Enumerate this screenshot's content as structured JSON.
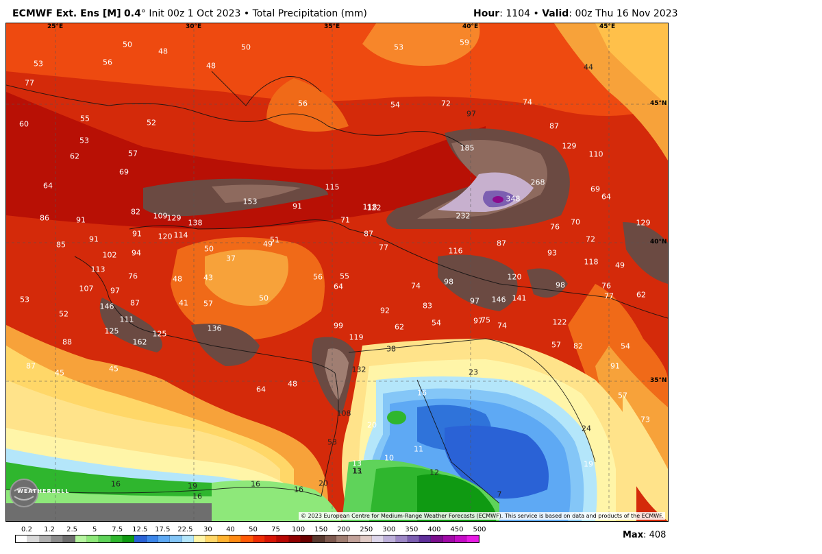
{
  "header": {
    "model": "ECMWF Ext. Ens [M]",
    "resolution": "0.4",
    "degree": "°",
    "init": "Init 00z 1 Oct 2023",
    "bullet": "•",
    "product": "Total Precipitation (mm)",
    "hour_label": "Hour",
    "hour_value": ": 1104",
    "valid_label": "Valid",
    "valid_value": ": 00z Thu 16 Nov 2023"
  },
  "map": {
    "grid_labels": {
      "lon": [
        "25°E",
        "30°E",
        "35°E",
        "40°E",
        "45°E"
      ],
      "lat": [
        "45°N",
        "40°N",
        "35°N"
      ]
    },
    "values": [
      "50",
      "48",
      "50",
      "53",
      "59",
      "53",
      "56",
      "48",
      "44",
      "77",
      "56",
      "54",
      "72",
      "74",
      "97",
      "60",
      "55",
      "52",
      "87",
      "53",
      "129",
      "185",
      "110",
      "62",
      "57",
      "69",
      "268",
      "64",
      "69",
      "115",
      "153",
      "64",
      "91",
      "118",
      "122",
      "348",
      "129",
      "86",
      "91",
      "82",
      "109",
      "129",
      "138",
      "71",
      "232",
      "76",
      "70",
      "85",
      "91",
      "91",
      "120",
      "114",
      "87",
      "87",
      "72",
      "50",
      "49",
      "51",
      "77",
      "116",
      "93",
      "118",
      "49",
      "102",
      "94",
      "37",
      "113",
      "76",
      "48",
      "43",
      "56",
      "55",
      "98",
      "120",
      "76",
      "74",
      "97",
      "107",
      "97",
      "87",
      "50",
      "64",
      "146",
      "141",
      "98",
      "77",
      "53",
      "146",
      "41",
      "57",
      "83",
      "97",
      "75",
      "62",
      "52",
      "111",
      "92",
      "54",
      "74",
      "122",
      "88",
      "99",
      "62",
      "125",
      "125",
      "136",
      "119",
      "57",
      "82",
      "162",
      "54",
      "87",
      "132",
      "38",
      "23",
      "91",
      "45",
      "45",
      "64",
      "48",
      "16",
      "57",
      "108",
      "73",
      "53",
      "20",
      "10",
      "11",
      "24",
      "13",
      "19",
      "16",
      "11",
      "12",
      "16",
      "20",
      "19",
      "16",
      "16",
      "7",
      "13"
    ],
    "copyright": "© 2023 European Centre for Medium-Range Weather Forecasts (ECMWF). This service is based on data and products of the ECMWF.",
    "logo_text": "WEATHERBELL"
  },
  "legend": {
    "ticks": [
      "0.2",
      "1.2",
      "2.5",
      "5",
      "7.5",
      "12.5",
      "17.5",
      "22.5",
      "30",
      "40",
      "50",
      "75",
      "100",
      "150",
      "200",
      "250",
      "300",
      "350",
      "400",
      "450",
      "500"
    ],
    "colors": [
      "#ffffff",
      "#d9d9d9",
      "#b0b0b0",
      "#8c8c8c",
      "#6e6e6e",
      "#b6f5a0",
      "#8ee87a",
      "#5fd35a",
      "#2fb62e",
      "#0f9a12",
      "#2a62d6",
      "#3c86ea",
      "#5ea9f4",
      "#84c6f7",
      "#b4e6fa",
      "#fff5a8",
      "#ffd768",
      "#ffb331",
      "#ff8a12",
      "#ff5a06",
      "#ef2d05",
      "#d81505",
      "#b80703",
      "#8f0000",
      "#6a0000",
      "#5a3a30",
      "#7e5a50",
      "#a07e72",
      "#c2a29a",
      "#e0cbc6",
      "#ddd6ea",
      "#bdb0da",
      "#9d88c6",
      "#7c5fb1",
      "#5f2f9a",
      "#7b0f8d",
      "#a10aa8",
      "#c40cc5",
      "#e81ae4"
    ],
    "max_label": "Max",
    "max_value": ": 408"
  },
  "colors": {
    "deep_red": "#c81e0a",
    "red": "#e23a0d",
    "orange": "#f7a23a",
    "yellow": "#ffe38a",
    "light_blue": "#aee4f8",
    "blue": "#2f73da",
    "green": "#12a21a",
    "brown": "#6b4a42",
    "purple": "#8c0a8c"
  }
}
